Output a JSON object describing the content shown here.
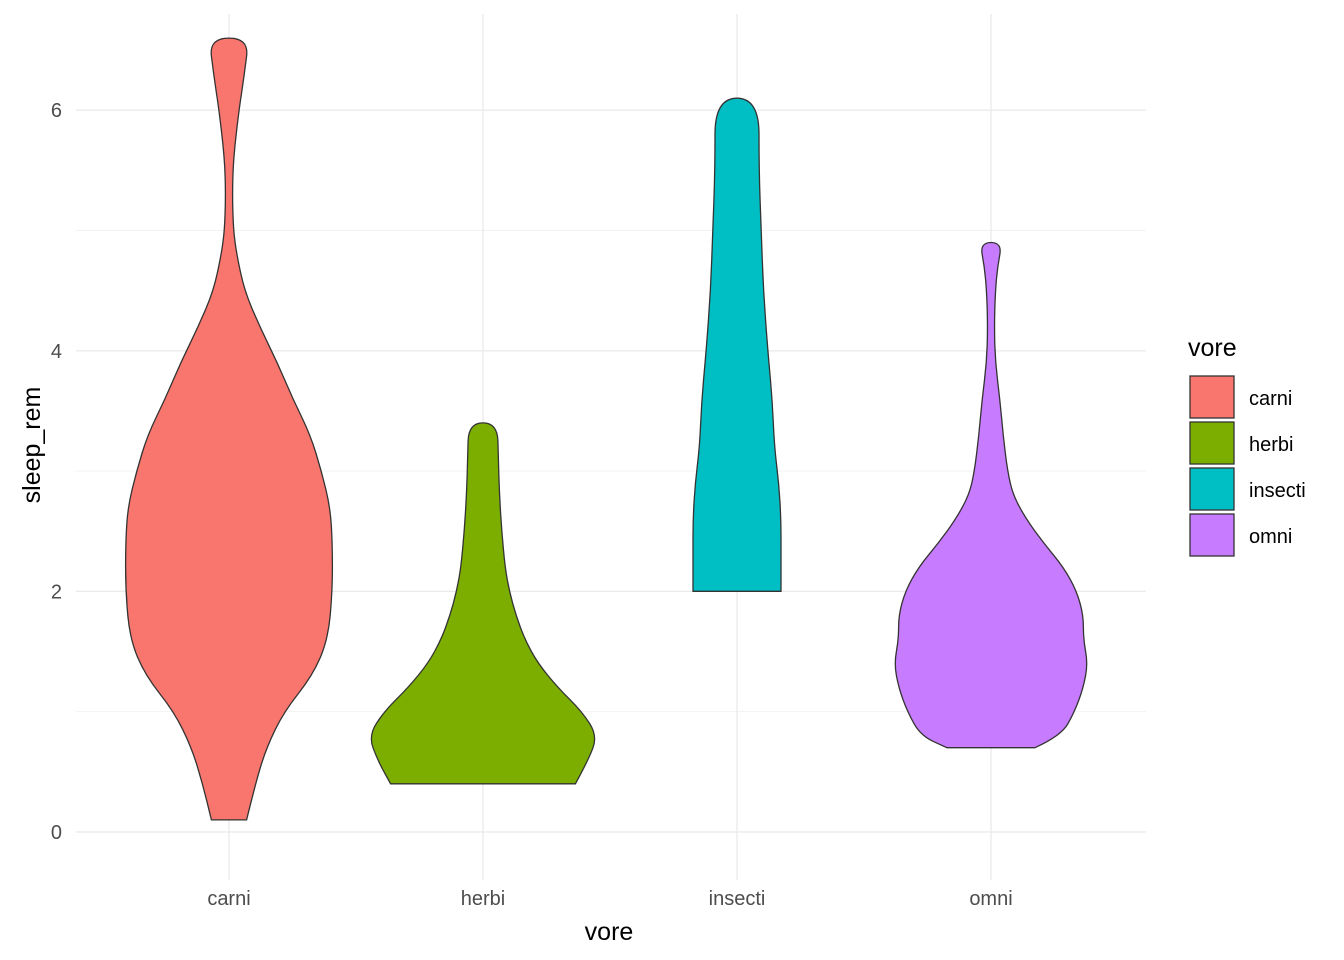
{
  "chart_data": {
    "type": "violin",
    "xlabel": "vore",
    "ylabel": "sleep_rem",
    "categories": [
      "carni",
      "herbi",
      "insecti",
      "omni"
    ],
    "colors": [
      "#F8766D",
      "#7CAE00",
      "#00BFC4",
      "#C77CFF"
    ],
    "ylim": [
      -0.4,
      6.8
    ],
    "yticks": [
      0,
      2,
      4,
      6
    ],
    "grid": true,
    "legend": {
      "title": "vore",
      "placement": "right",
      "entries": [
        "carni",
        "herbi",
        "insecti",
        "omni"
      ]
    },
    "violins": [
      {
        "category": "carni",
        "min": 0.1,
        "max": 6.6,
        "profile": [
          [
            0.1,
            0.08
          ],
          [
            0.4,
            0.12
          ],
          [
            0.7,
            0.17
          ],
          [
            1.0,
            0.25
          ],
          [
            1.3,
            0.38
          ],
          [
            1.6,
            0.45
          ],
          [
            2.0,
            0.47
          ],
          [
            2.4,
            0.47
          ],
          [
            2.7,
            0.46
          ],
          [
            3.0,
            0.42
          ],
          [
            3.3,
            0.37
          ],
          [
            3.6,
            0.29
          ],
          [
            3.9,
            0.22
          ],
          [
            4.2,
            0.14
          ],
          [
            4.5,
            0.07
          ],
          [
            4.8,
            0.035
          ],
          [
            5.0,
            0.02
          ],
          [
            5.3,
            0.015
          ],
          [
            5.6,
            0.02
          ],
          [
            6.0,
            0.045
          ],
          [
            6.3,
            0.07
          ],
          [
            6.6,
            0.09
          ]
        ]
      },
      {
        "category": "herbi",
        "min": 0.4,
        "max": 3.4,
        "profile": [
          [
            0.4,
            0.42
          ],
          [
            0.6,
            0.48
          ],
          [
            0.8,
            0.52
          ],
          [
            1.0,
            0.45
          ],
          [
            1.2,
            0.34
          ],
          [
            1.4,
            0.25
          ],
          [
            1.6,
            0.19
          ],
          [
            1.8,
            0.15
          ],
          [
            2.0,
            0.12
          ],
          [
            2.2,
            0.1
          ],
          [
            2.5,
            0.085
          ],
          [
            2.8,
            0.075
          ],
          [
            3.1,
            0.07
          ],
          [
            3.4,
            0.065
          ]
        ]
      },
      {
        "category": "insecti",
        "min": 2.0,
        "max": 6.1,
        "profile": [
          [
            2.0,
            0.2
          ],
          [
            2.3,
            0.2
          ],
          [
            2.6,
            0.2
          ],
          [
            2.9,
            0.19
          ],
          [
            3.2,
            0.17
          ],
          [
            3.6,
            0.16
          ],
          [
            4.0,
            0.14
          ],
          [
            4.5,
            0.12
          ],
          [
            5.0,
            0.11
          ],
          [
            5.5,
            0.1
          ],
          [
            6.1,
            0.1
          ]
        ]
      },
      {
        "category": "omni",
        "min": 0.7,
        "max": 4.9,
        "profile": [
          [
            0.7,
            0.2
          ],
          [
            0.8,
            0.32
          ],
          [
            1.0,
            0.38
          ],
          [
            1.2,
            0.42
          ],
          [
            1.4,
            0.44
          ],
          [
            1.6,
            0.42
          ],
          [
            1.8,
            0.42
          ],
          [
            2.0,
            0.39
          ],
          [
            2.2,
            0.33
          ],
          [
            2.4,
            0.24
          ],
          [
            2.6,
            0.16
          ],
          [
            2.8,
            0.1
          ],
          [
            3.0,
            0.075
          ],
          [
            3.3,
            0.055
          ],
          [
            3.6,
            0.04
          ],
          [
            3.9,
            0.02
          ],
          [
            4.2,
            0.015
          ],
          [
            4.5,
            0.02
          ],
          [
            4.7,
            0.03
          ],
          [
            4.9,
            0.05
          ]
        ]
      }
    ]
  }
}
